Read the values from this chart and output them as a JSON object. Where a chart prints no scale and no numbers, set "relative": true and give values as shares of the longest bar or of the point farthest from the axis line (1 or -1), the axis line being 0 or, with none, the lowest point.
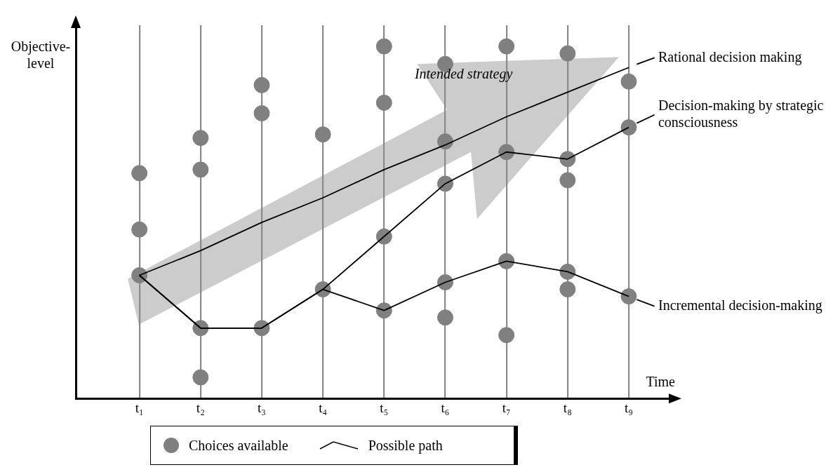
{
  "chart_data": {
    "type": "scatter",
    "relative": true,
    "xlabel": "Time",
    "ylabel": "Objective-level",
    "categories": [
      "t₁",
      "t₂",
      "t₃",
      "t₄",
      "t₅",
      "t₆",
      "t₇",
      "t₈",
      "t₉"
    ],
    "grid": "x",
    "legend": "bottom",
    "annotations": [
      "Intended strategy",
      "Possible path"
    ],
    "series": [
      {
        "name": "Choices available",
        "color": "#808080",
        "marker": "circle",
        "x": [
          "t₁",
          "t₁",
          "t₁",
          "t₂",
          "t₂",
          "t₂",
          "t₂",
          "t₃",
          "t₃",
          "t₃",
          "t₄",
          "t₄",
          "t₅",
          "t₅",
          "t₅",
          "t₅",
          "t₆",
          "t₆",
          "t₆",
          "t₆",
          "t₆",
          "t₇",
          "t₇",
          "t₇",
          "t₇",
          "t₈",
          "t₈",
          "t₈",
          "t₈",
          "t₈",
          "t₉",
          "t₉",
          "t₉"
        ],
        "values": [
          0.64,
          0.48,
          0.35,
          0.74,
          0.65,
          0.2,
          0.06,
          0.89,
          0.81,
          0.2,
          0.75,
          0.31,
          1,
          0.84,
          0.46,
          0.25,
          0.95,
          0.73,
          0.61,
          0.33,
          0.23,
          1,
          0.7,
          0.39,
          0.18,
          0.98,
          0.68,
          0.62,
          0.36,
          0.31,
          0.9,
          0.77,
          0.29
        ]
      },
      {
        "name": "Rational decision making",
        "type": "line",
        "color": "#000000",
        "marker": "none",
        "values": [
          0.35,
          0.42,
          0.5,
          0.57,
          0.65,
          0.72,
          0.8,
          0.87,
          0.94
        ]
      },
      {
        "name": "Decision-making by strategic consciousness",
        "type": "line",
        "color": "#000000",
        "marker": "none",
        "values": [
          0.35,
          0.2,
          0.2,
          0.31,
          0.46,
          0.61,
          0.7,
          0.68,
          0.77
        ]
      },
      {
        "name": "Incremental decision-making",
        "type": "line",
        "color": "#000000",
        "marker": "none",
        "values": [
          0.35,
          0.2,
          0.2,
          0.31,
          0.25,
          0.33,
          0.39,
          0.36,
          0.29
        ]
      }
    ]
  }
}
